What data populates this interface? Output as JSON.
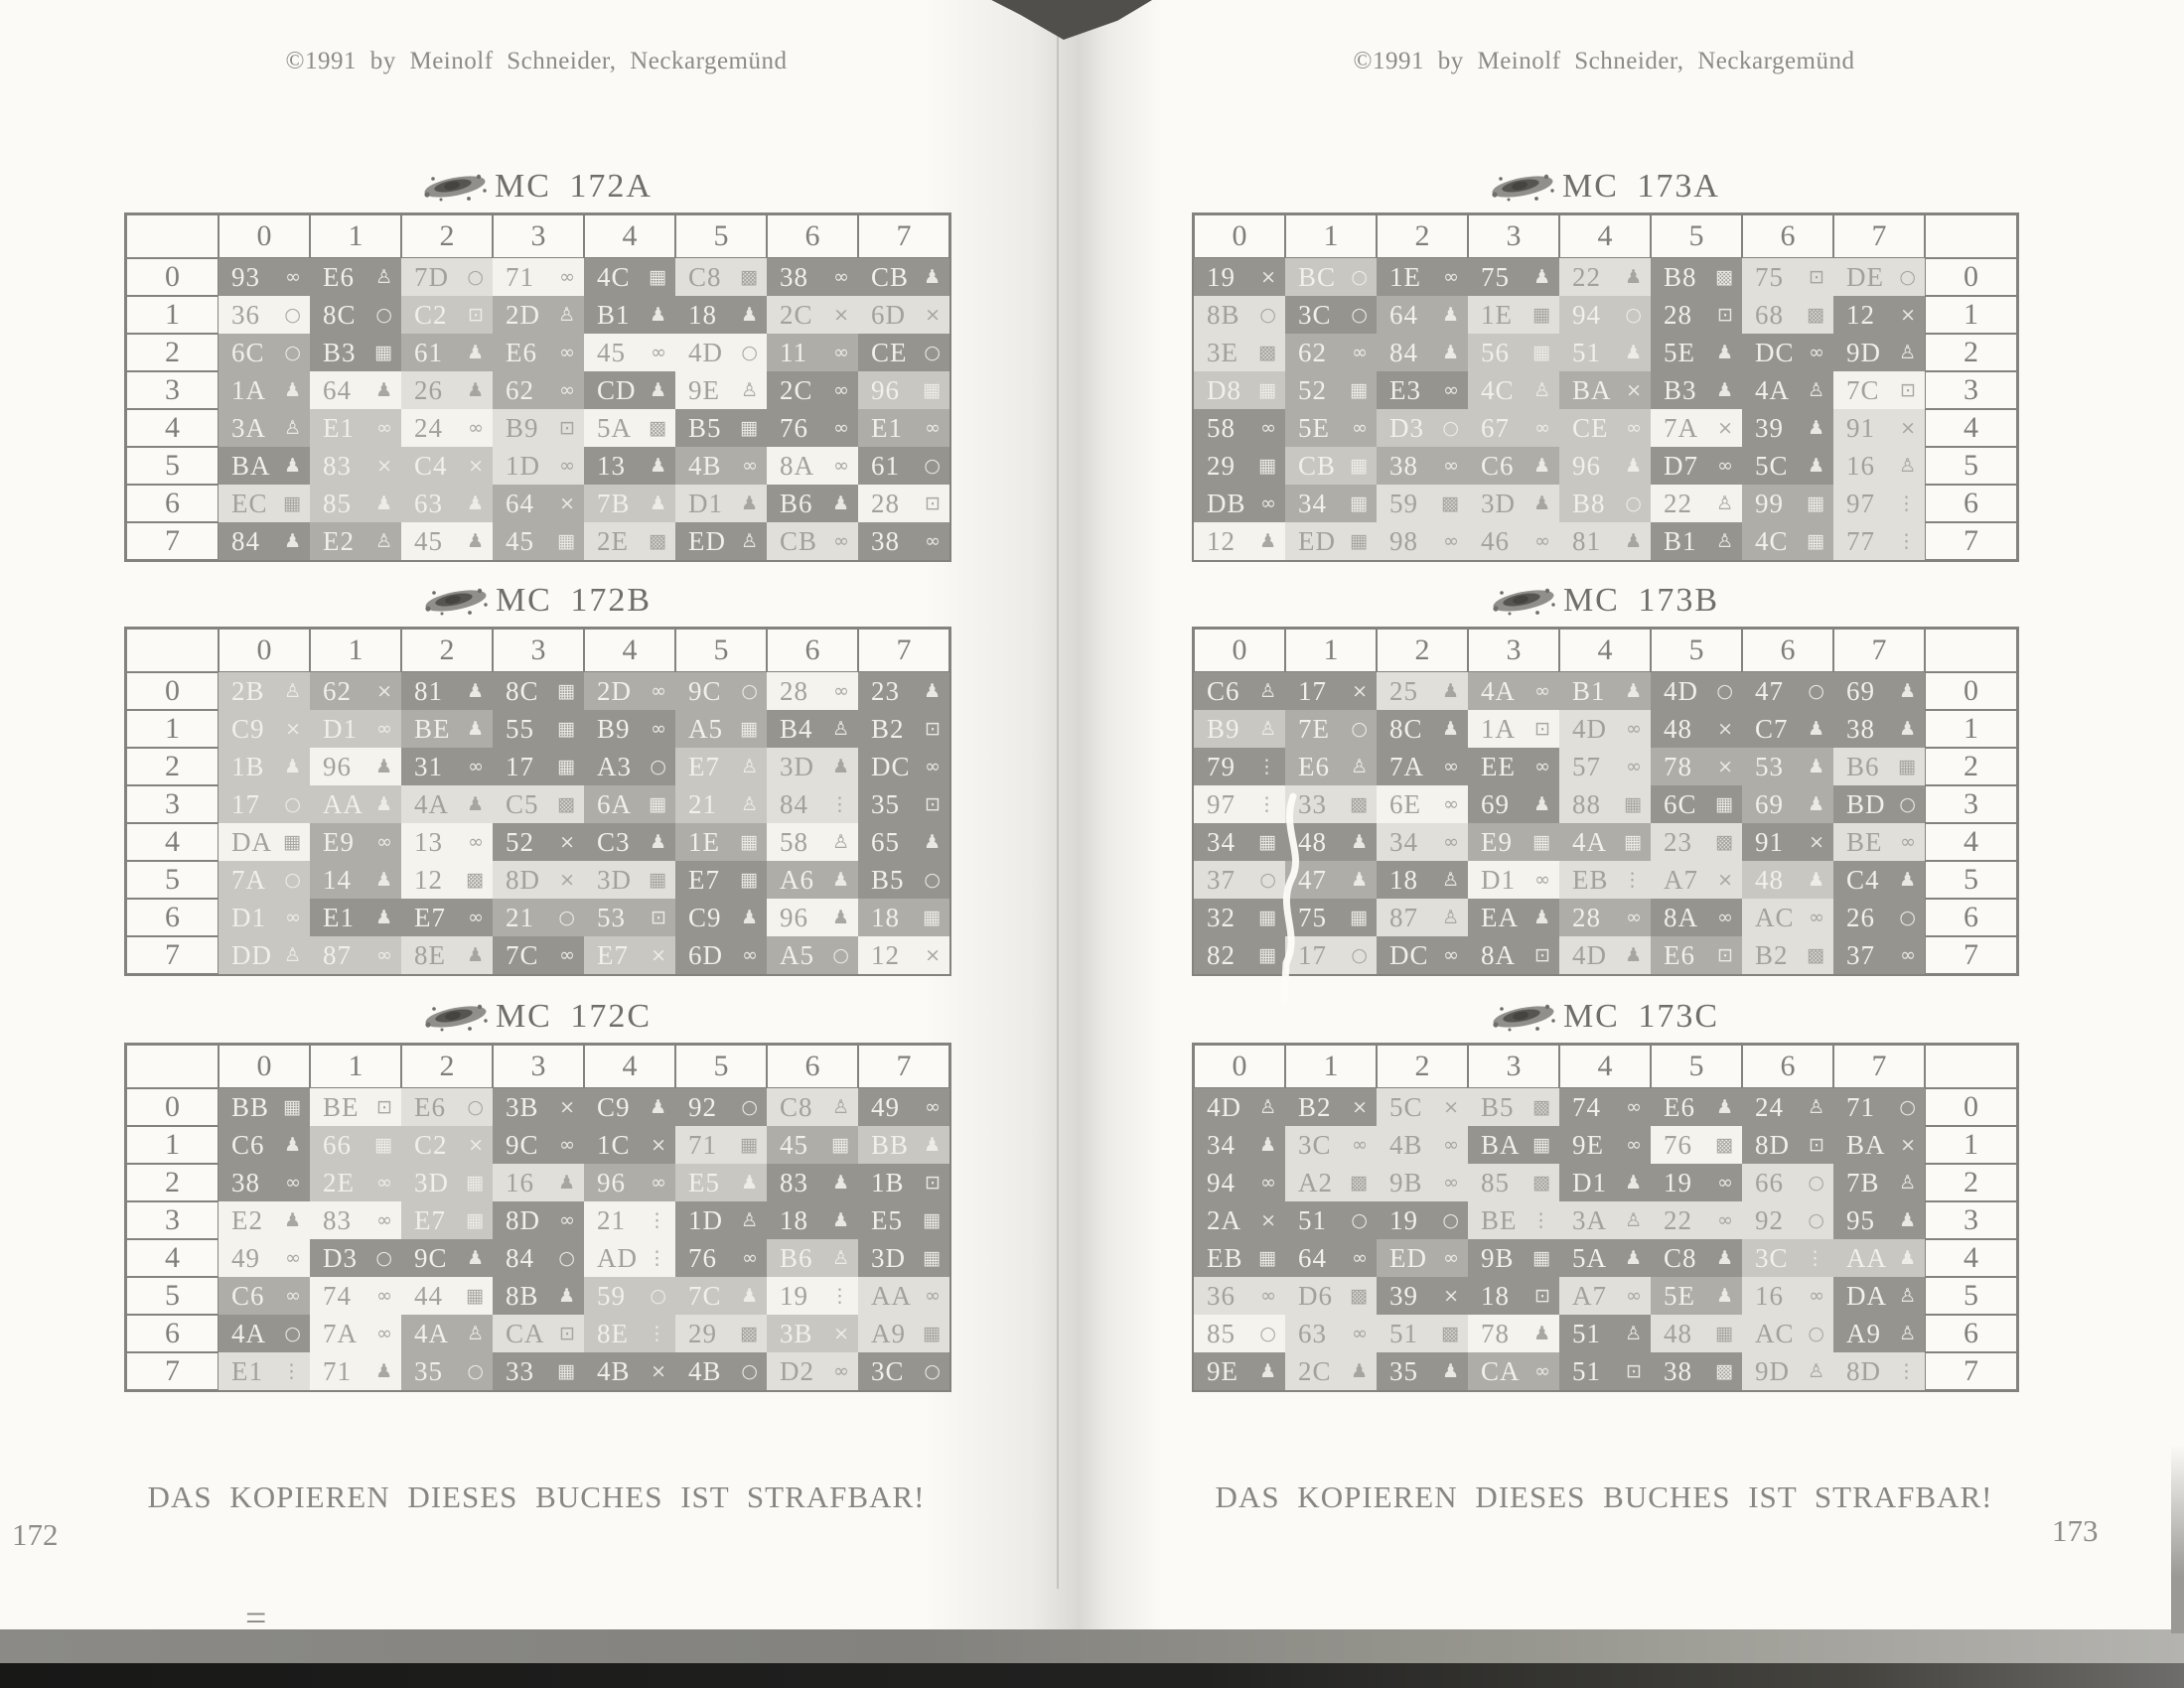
{
  "book": {
    "left_page": {
      "copyright": "©1991 by Meinolf Schneider, Neckargemünd",
      "warning": "DAS KOPIEREN DIESES BUCHES IST STRAFBAR!",
      "page_number": "172"
    },
    "right_page": {
      "copyright": "©1991 by Meinolf Schneider, Neckargemünd",
      "warning": "DAS KOPIEREN DIESES BUCHES IST STRAFBAR!",
      "page_number": "173"
    },
    "artifacts": {
      "equals_mark": "="
    }
  },
  "colors": {
    "page": "#fbfaf7",
    "ink": "#8c8b87",
    "table_border": "#83827e",
    "cell_text_light": "#f1f0ea",
    "cell_text_dark": "#a2a19b"
  },
  "shade_palette": [
    "#f4f3ee",
    "#e0dfd9",
    "#c8c7c1",
    "#aeada7",
    "#95948e"
  ],
  "icons": {
    "gl": {
      "name": "glasses-icon",
      "glyph": "∞"
    },
    "rg": {
      "name": "ring-icon",
      "glyph": "○"
    },
    "x": {
      "name": "cross-icon",
      "glyph": "×"
    },
    "bt": {
      "name": "bottle-icon",
      "glyph": "♟"
    },
    "pr": {
      "name": "figure-icon",
      "glyph": "♙"
    },
    "cs": {
      "name": "case-icon",
      "glyph": "▦"
    },
    "bk": {
      "name": "basket-icon",
      "glyph": "▩"
    },
    "di": {
      "name": "die-icon",
      "glyph": "⊡"
    },
    "dr": {
      "name": "drops-icon",
      "glyph": "⋮"
    }
  },
  "tables": [
    {
      "id": "mc-172a",
      "title": "MC 172A",
      "page": "left",
      "labels_side": "left",
      "col_headers": [
        "0",
        "1",
        "2",
        "3",
        "4",
        "5",
        "6",
        "7"
      ],
      "row_headers": [
        "0",
        "1",
        "2",
        "3",
        "4",
        "5",
        "6",
        "7"
      ],
      "rows": [
        [
          "93|gl|4",
          "E6|pr|4",
          "7D|rg|1",
          "71|gl|0",
          "4C|cs|4",
          "C8|bk|1",
          "38|gl|4",
          "CB|bt|4"
        ],
        [
          "36|rg|0",
          "8C|rg|4",
          "C2|di|2",
          "2D|pr|3",
          "B1|bt|4",
          "18|bt|4",
          "2C|x|1",
          "6D|x|1"
        ],
        [
          "6C|rg|3",
          "B3|cs|4",
          "61|bt|3",
          "E6|gl|3",
          "45|gl|0",
          "4D|rg|0",
          "11|gl|3",
          "CE|rg|4"
        ],
        [
          "1A|bt|3",
          "64|bt|0",
          "26|bt|1",
          "62|gl|3",
          "CD|bt|4",
          "9E|pr|0",
          "2C|gl|4",
          "96|cs|2"
        ],
        [
          "3A|pr|3",
          "E1|gl|2",
          "24|gl|0",
          "B9|di|1",
          "5A|bk|0",
          "B5|cs|4",
          "76|gl|4",
          "E1|gl|3"
        ],
        [
          "BA|bt|4",
          "83|x|2",
          "C4|x|2",
          "1D|gl|1",
          "13|bt|4",
          "4B|gl|3",
          "8A|gl|0",
          "61|rg|4"
        ],
        [
          "EC|cs|1",
          "85|bt|2",
          "63|bt|2",
          "64|x|3",
          "7B|bt|2",
          "D1|bt|1",
          "B6|bt|4",
          "28|di|0"
        ],
        [
          "84|bt|4",
          "E2|pr|3",
          "45|bt|0",
          "45|cs|3",
          "2E|bk|1",
          "ED|pr|4",
          "CB|gl|1",
          "38|gl|4"
        ]
      ]
    },
    {
      "id": "mc-172b",
      "title": "MC 172B",
      "page": "left",
      "labels_side": "left",
      "col_headers": [
        "0",
        "1",
        "2",
        "3",
        "4",
        "5",
        "6",
        "7"
      ],
      "row_headers": [
        "0",
        "1",
        "2",
        "3",
        "4",
        "5",
        "6",
        "7"
      ],
      "rows": [
        [
          "2B|pr|2",
          "62|x|3",
          "81|bt|4",
          "8C|cs|4",
          "2D|gl|3",
          "9C|rg|3",
          "28|gl|0",
          "23|bt|4"
        ],
        [
          "C9|x|2",
          "D1|gl|2",
          "BE|bt|3",
          "55|cs|4",
          "B9|gl|4",
          "A5|cs|3",
          "B4|pr|4",
          "B2|di|4"
        ],
        [
          "1B|bt|2",
          "96|bt|0",
          "31|gl|4",
          "17|cs|4",
          "A3|rg|4",
          "E7|pr|2",
          "3D|bt|1",
          "DC|gl|4"
        ],
        [
          "17|rg|2",
          "AA|bt|2",
          "4A|bt|1",
          "C5|bk|1",
          "6A|cs|3",
          "21|pr|2",
          "84|dr|1",
          "35|di|4"
        ],
        [
          "DA|cs|0",
          "E9|gl|3",
          "13|gl|0",
          "52|x|4",
          "C3|bt|4",
          "1E|cs|3",
          "58|pr|0",
          "65|bt|4"
        ],
        [
          "7A|rg|2",
          "14|bt|3",
          "12|bk|0",
          "8D|x|1",
          "3D|cs|1",
          "E7|cs|4",
          "A6|bt|3",
          "B5|rg|4"
        ],
        [
          "D1|gl|2",
          "E1|bt|4",
          "E7|gl|4",
          "21|rg|3",
          "53|di|3",
          "C9|bt|4",
          "96|bt|0",
          "18|cs|3"
        ],
        [
          "DD|pr|2",
          "87|gl|2",
          "8E|bt|1",
          "7C|gl|4",
          "E7|x|2",
          "6D|gl|4",
          "A5|rg|3",
          "12|x|0"
        ]
      ]
    },
    {
      "id": "mc-172c",
      "title": "MC 172C",
      "page": "left",
      "labels_side": "left",
      "col_headers": [
        "0",
        "1",
        "2",
        "3",
        "4",
        "5",
        "6",
        "7"
      ],
      "row_headers": [
        "0",
        "1",
        "2",
        "3",
        "4",
        "5",
        "6",
        "7"
      ],
      "rows": [
        [
          "BB|cs|4",
          "BE|di|0",
          "E6|rg|1",
          "3B|x|4",
          "C9|bt|4",
          "92|rg|4",
          "C8|pr|1",
          "49|gl|4"
        ],
        [
          "C6|bt|4",
          "66|cs|2",
          "C2|x|2",
          "9C|gl|4",
          "1C|x|4",
          "71|cs|1",
          "45|cs|3",
          "BB|bt|2"
        ],
        [
          "38|gl|4",
          "2E|gl|2",
          "3D|cs|2",
          "16|bt|1",
          "96|gl|3",
          "E5|bt|2",
          "83|bt|4",
          "1B|di|4"
        ],
        [
          "E2|bt|0",
          "83|gl|0",
          "E7|cs|2",
          "8D|gl|4",
          "21|dr|0",
          "1D|pr|4",
          "18|bt|4",
          "E5|cs|4"
        ],
        [
          "49|gl|0",
          "D3|rg|4",
          "9C|bt|4",
          "84|rg|4",
          "AD|dr|0",
          "76|gl|4",
          "B6|pr|2",
          "3D|cs|4"
        ],
        [
          "C6|gl|3",
          "74|gl|0",
          "44|cs|0",
          "8B|bt|4",
          "59|rg|2",
          "7C|bt|2",
          "19|dr|0",
          "AA|gl|1"
        ],
        [
          "4A|rg|4",
          "7A|gl|0",
          "4A|pr|3",
          "CA|di|1",
          "8E|dr|2",
          "29|bk|1",
          "3B|x|2",
          "A9|cs|1"
        ],
        [
          "E1|dr|1",
          "71|bt|0",
          "35|rg|3",
          "33|cs|4",
          "4B|x|4",
          "4B|rg|4",
          "D2|gl|1",
          "3C|rg|4"
        ]
      ]
    },
    {
      "id": "mc-173a",
      "title": "MC 173A",
      "page": "right",
      "labels_side": "right",
      "col_headers": [
        "0",
        "1",
        "2",
        "3",
        "4",
        "5",
        "6",
        "7"
      ],
      "row_headers": [
        "0",
        "1",
        "2",
        "3",
        "4",
        "5",
        "6",
        "7"
      ],
      "rows": [
        [
          "19|x|4",
          "BC|rg|2",
          "1E|gl|4",
          "75|bt|4",
          "22|bt|1",
          "B8|bk|4",
          "75|di|1",
          "DE|rg|1"
        ],
        [
          "8B|rg|1",
          "3C|rg|4",
          "64|bt|3",
          "1E|cs|1",
          "94|rg|2",
          "28|di|4",
          "68|bk|1",
          "12|x|4"
        ],
        [
          "3E|bk|1",
          "62|gl|3",
          "84|bt|3",
          "56|cs|2",
          "51|bt|2",
          "5E|bt|4",
          "DC|gl|4",
          "9D|pr|4"
        ],
        [
          "D8|cs|2",
          "52|cs|3",
          "E3|gl|4",
          "4C|pr|2",
          "BA|x|3",
          "B3|bt|4",
          "4A|pr|4",
          "7C|di|0"
        ],
        [
          "58|gl|4",
          "5E|gl|3",
          "D3|rg|2",
          "67|gl|2",
          "CE|gl|2",
          "7A|x|0",
          "39|bt|4",
          "91|x|1"
        ],
        [
          "29|cs|4",
          "CB|cs|2",
          "38|gl|3",
          "C6|bt|3",
          "96|bt|2",
          "D7|gl|4",
          "5C|bt|4",
          "16|pr|1"
        ],
        [
          "DB|gl|4",
          "34|cs|3",
          "59|bk|1",
          "3D|bt|1",
          "B8|rg|2",
          "22|pr|0",
          "99|cs|3",
          "97|dr|1"
        ],
        [
          "12|bt|0",
          "ED|cs|1",
          "98|gl|1",
          "46|gl|1",
          "81|bt|1",
          "B1|pr|4",
          "4C|cs|3",
          "77|dr|1"
        ]
      ]
    },
    {
      "id": "mc-173b",
      "title": "MC 173B",
      "page": "right",
      "labels_side": "right",
      "col_headers": [
        "0",
        "1",
        "2",
        "3",
        "4",
        "5",
        "6",
        "7"
      ],
      "row_headers": [
        "0",
        "1",
        "2",
        "3",
        "4",
        "5",
        "6",
        "7"
      ],
      "rows": [
        [
          "C6|pr|4",
          "17|x|4",
          "25|bt|1",
          "4A|gl|3",
          "B1|bt|3",
          "4D|rg|4",
          "47|rg|4",
          "69|bt|4"
        ],
        [
          "B9|pr|2",
          "7E|rg|3",
          "8C|bt|4",
          "1A|di|0",
          "4D|gl|1",
          "48|x|4",
          "C7|bt|4",
          "38|bt|4"
        ],
        [
          "79|dr|4",
          "E6|pr|3",
          "7A|gl|4",
          "EE|gl|4",
          "57|gl|1",
          "78|x|3",
          "53|bt|3",
          "B6|cs|1"
        ],
        [
          "97|dr|0",
          "33|bk|1",
          "6E|gl|0",
          "69|bt|4",
          "88|cs|1",
          "6C|cs|4",
          "69|bt|3",
          "BD|rg|4"
        ],
        [
          "34|cs|4",
          "48|bt|4",
          "34|gl|1",
          "E9|cs|3",
          "4A|cs|3",
          "23|bk|1",
          "91|x|4",
          "BE|gl|1"
        ],
        [
          "37|rg|1",
          "47|bt|3",
          "18|pr|4",
          "D1|gl|0",
          "EB|dr|1",
          "A7|x|1",
          "48|bt|2",
          "C4|bt|4"
        ],
        [
          "32|cs|4",
          "75|cs|4",
          "87|pr|1",
          "EA|bt|4",
          "28|gl|3",
          "8A|gl|4",
          "AC|gl|1",
          "26|rg|4"
        ],
        [
          "82|cs|4",
          "17|rg|1",
          "DC|gl|4",
          "8A|di|4",
          "4D|bt|1",
          "E6|di|3",
          "B2|bk|1",
          "37|gl|4"
        ]
      ]
    },
    {
      "id": "mc-173c",
      "title": "MC 173C",
      "page": "right",
      "labels_side": "right",
      "col_headers": [
        "0",
        "1",
        "2",
        "3",
        "4",
        "5",
        "6",
        "7"
      ],
      "row_headers": [
        "0",
        "1",
        "2",
        "3",
        "4",
        "5",
        "6",
        "7"
      ],
      "rows": [
        [
          "4D|pr|4",
          "B2|x|4",
          "5C|x|1",
          "B5|bk|1",
          "74|gl|4",
          "E6|bt|4",
          "24|pr|4",
          "71|rg|4"
        ],
        [
          "34|bt|4",
          "3C|gl|1",
          "4B|gl|1",
          "BA|cs|4",
          "9E|gl|4",
          "76|bk|0",
          "8D|di|4",
          "BA|x|4"
        ],
        [
          "94|gl|4",
          "A2|bk|1",
          "9B|gl|1",
          "85|bk|1",
          "D1|bt|4",
          "19|gl|4",
          "66|rg|1",
          "7B|pr|4"
        ],
        [
          "2A|x|4",
          "51|rg|4",
          "19|rg|4",
          "BE|dr|1",
          "3A|pr|1",
          "22|gl|1",
          "92|rg|1",
          "95|bt|4"
        ],
        [
          "EB|cs|4",
          "64|gl|4",
          "ED|gl|3",
          "9B|cs|4",
          "5A|bt|4",
          "C8|bt|4",
          "3C|dr|2",
          "AA|bt|2"
        ],
        [
          "36|gl|1",
          "D6|bk|1",
          "39|x|4",
          "18|di|4",
          "A7|gl|1",
          "5E|bt|3",
          "16|gl|1",
          "DA|pr|4"
        ],
        [
          "85|rg|0",
          "63|gl|1",
          "51|bk|1",
          "78|bt|0",
          "51|pr|4",
          "48|cs|1",
          "AC|rg|1",
          "A9|pr|4"
        ],
        [
          "9E|bt|4",
          "2C|bt|1",
          "35|bt|4",
          "CA|gl|3",
          "51|di|4",
          "38|bk|4",
          "9D|pr|1",
          "8D|dr|1"
        ]
      ]
    }
  ]
}
